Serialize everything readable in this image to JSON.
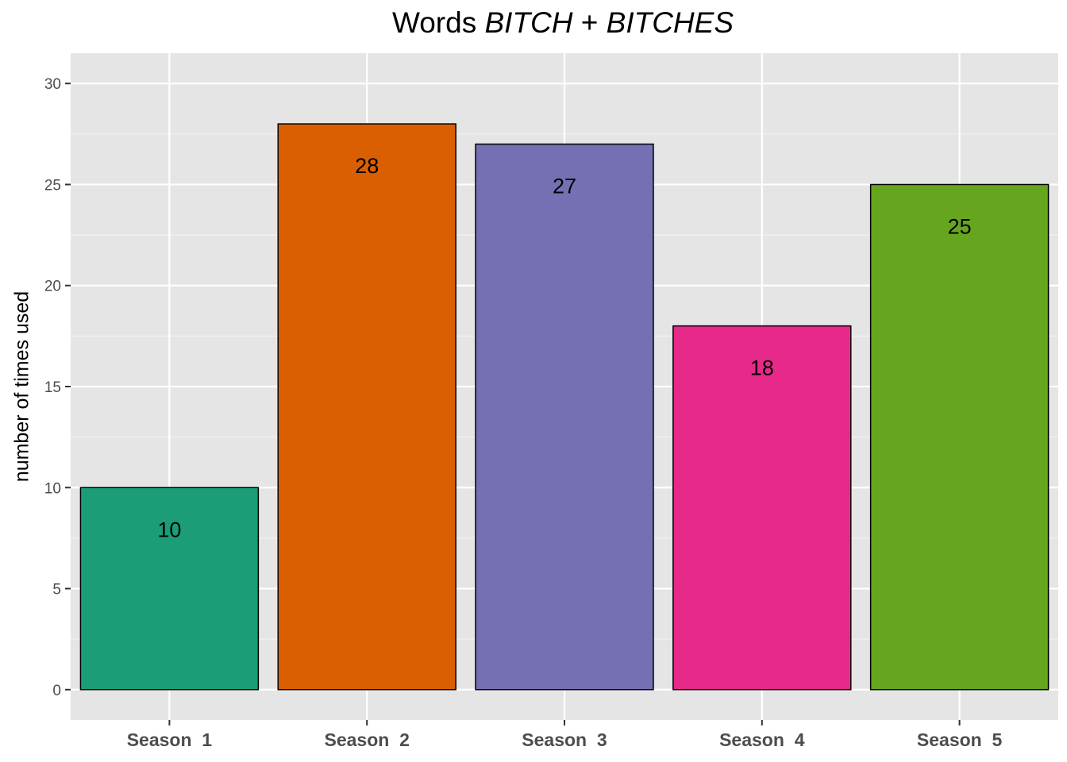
{
  "chart_data": {
    "type": "bar",
    "title_plain": "Words ",
    "title_italic_1": "BITCH",
    "title_mid": " + ",
    "title_italic_2": "BITCHES",
    "xlabel": "",
    "ylabel": "number of times used",
    "categories": [
      "Season  1",
      "Season  2",
      "Season  3",
      "Season  4",
      "Season  5"
    ],
    "values": [
      10,
      28,
      27,
      18,
      25
    ],
    "colors": [
      "#1b9e77",
      "#d95f02",
      "#7570b3",
      "#e7298a",
      "#66a61e"
    ],
    "yticks": [
      "0",
      "5",
      "10",
      "15",
      "20",
      "25",
      "30"
    ],
    "ylim": [
      -1.5,
      31.5
    ],
    "grid": true,
    "panel_background": "#e5e5e5",
    "data_labels": [
      "10",
      "28",
      "27",
      "18",
      "25"
    ]
  }
}
